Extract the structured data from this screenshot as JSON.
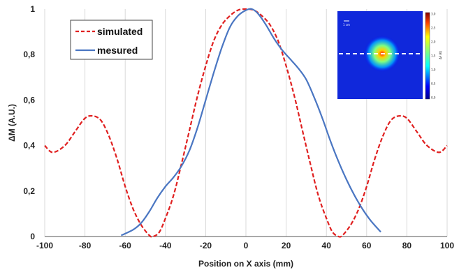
{
  "chart_data": {
    "type": "line",
    "xlabel": "Position on X axis (mm)",
    "ylabel": "ΔM (A.U.)",
    "xlim": [
      -100,
      100
    ],
    "ylim": [
      0,
      1
    ],
    "x_ticks": [
      -100,
      -80,
      -60,
      -40,
      -20,
      0,
      20,
      40,
      60,
      80,
      100
    ],
    "y_ticks": [
      {
        "value": 0,
        "label": "0"
      },
      {
        "value": 0.2,
        "label": "0,2"
      },
      {
        "value": 0.4,
        "label": "0,4"
      },
      {
        "value": 0.6,
        "label": "0,6"
      },
      {
        "value": 0.8,
        "label": "0,8"
      },
      {
        "value": 1,
        "label": "1"
      }
    ],
    "grid": "vertical",
    "legend_position": "top-left",
    "series": [
      {
        "name": "simulated",
        "style": "dashed",
        "color": "#e02020",
        "points": [
          [
            -100,
            0.4
          ],
          [
            -96,
            0.37
          ],
          [
            -90,
            0.4
          ],
          [
            -85,
            0.46
          ],
          [
            -80,
            0.52
          ],
          [
            -76,
            0.53
          ],
          [
            -72,
            0.51
          ],
          [
            -68,
            0.44
          ],
          [
            -64,
            0.34
          ],
          [
            -60,
            0.22
          ],
          [
            -56,
            0.12
          ],
          [
            -52,
            0.05
          ],
          [
            -48,
            0.005
          ],
          [
            -46,
            0.0
          ],
          [
            -43,
            0.02
          ],
          [
            -40,
            0.08
          ],
          [
            -36,
            0.18
          ],
          [
            -32,
            0.32
          ],
          [
            -28,
            0.47
          ],
          [
            -24,
            0.62
          ],
          [
            -20,
            0.75
          ],
          [
            -16,
            0.86
          ],
          [
            -12,
            0.93
          ],
          [
            -8,
            0.97
          ],
          [
            -4,
            0.995
          ],
          [
            0,
            1.0
          ],
          [
            4,
            0.995
          ],
          [
            8,
            0.97
          ],
          [
            12,
            0.93
          ],
          [
            16,
            0.86
          ],
          [
            20,
            0.75
          ],
          [
            24,
            0.62
          ],
          [
            28,
            0.47
          ],
          [
            32,
            0.32
          ],
          [
            36,
            0.18
          ],
          [
            40,
            0.08
          ],
          [
            43,
            0.02
          ],
          [
            46,
            0.0
          ],
          [
            48,
            0.005
          ],
          [
            52,
            0.05
          ],
          [
            56,
            0.12
          ],
          [
            60,
            0.22
          ],
          [
            64,
            0.34
          ],
          [
            68,
            0.44
          ],
          [
            72,
            0.51
          ],
          [
            76,
            0.53
          ],
          [
            80,
            0.52
          ],
          [
            85,
            0.46
          ],
          [
            90,
            0.4
          ],
          [
            96,
            0.37
          ],
          [
            100,
            0.4
          ]
        ]
      },
      {
        "name": "mesured",
        "style": "solid",
        "color": "#4a76c2",
        "points": [
          [
            -62,
            0.005
          ],
          [
            -56,
            0.03
          ],
          [
            -52,
            0.06
          ],
          [
            -48,
            0.11
          ],
          [
            -44,
            0.17
          ],
          [
            -40,
            0.22
          ],
          [
            -36,
            0.26
          ],
          [
            -32,
            0.31
          ],
          [
            -28,
            0.38
          ],
          [
            -24,
            0.48
          ],
          [
            -20,
            0.6
          ],
          [
            -16,
            0.72
          ],
          [
            -12,
            0.83
          ],
          [
            -8,
            0.92
          ],
          [
            -4,
            0.97
          ],
          [
            0,
            0.995
          ],
          [
            3,
            1.0
          ],
          [
            6,
            0.98
          ],
          [
            10,
            0.93
          ],
          [
            14,
            0.87
          ],
          [
            18,
            0.82
          ],
          [
            22,
            0.78
          ],
          [
            26,
            0.74
          ],
          [
            30,
            0.69
          ],
          [
            34,
            0.61
          ],
          [
            38,
            0.52
          ],
          [
            42,
            0.42
          ],
          [
            46,
            0.33
          ],
          [
            50,
            0.25
          ],
          [
            54,
            0.18
          ],
          [
            58,
            0.12
          ],
          [
            62,
            0.07
          ],
          [
            67,
            0.02
          ]
        ]
      }
    ],
    "inset": {
      "scale_label": "1 cm",
      "colorbar_ticks": [
        "3,0",
        "2,5",
        "2,0",
        "1,5",
        "1,0",
        "0,5",
        "0,0"
      ],
      "colorbar_label": "ΔF (K)"
    }
  }
}
